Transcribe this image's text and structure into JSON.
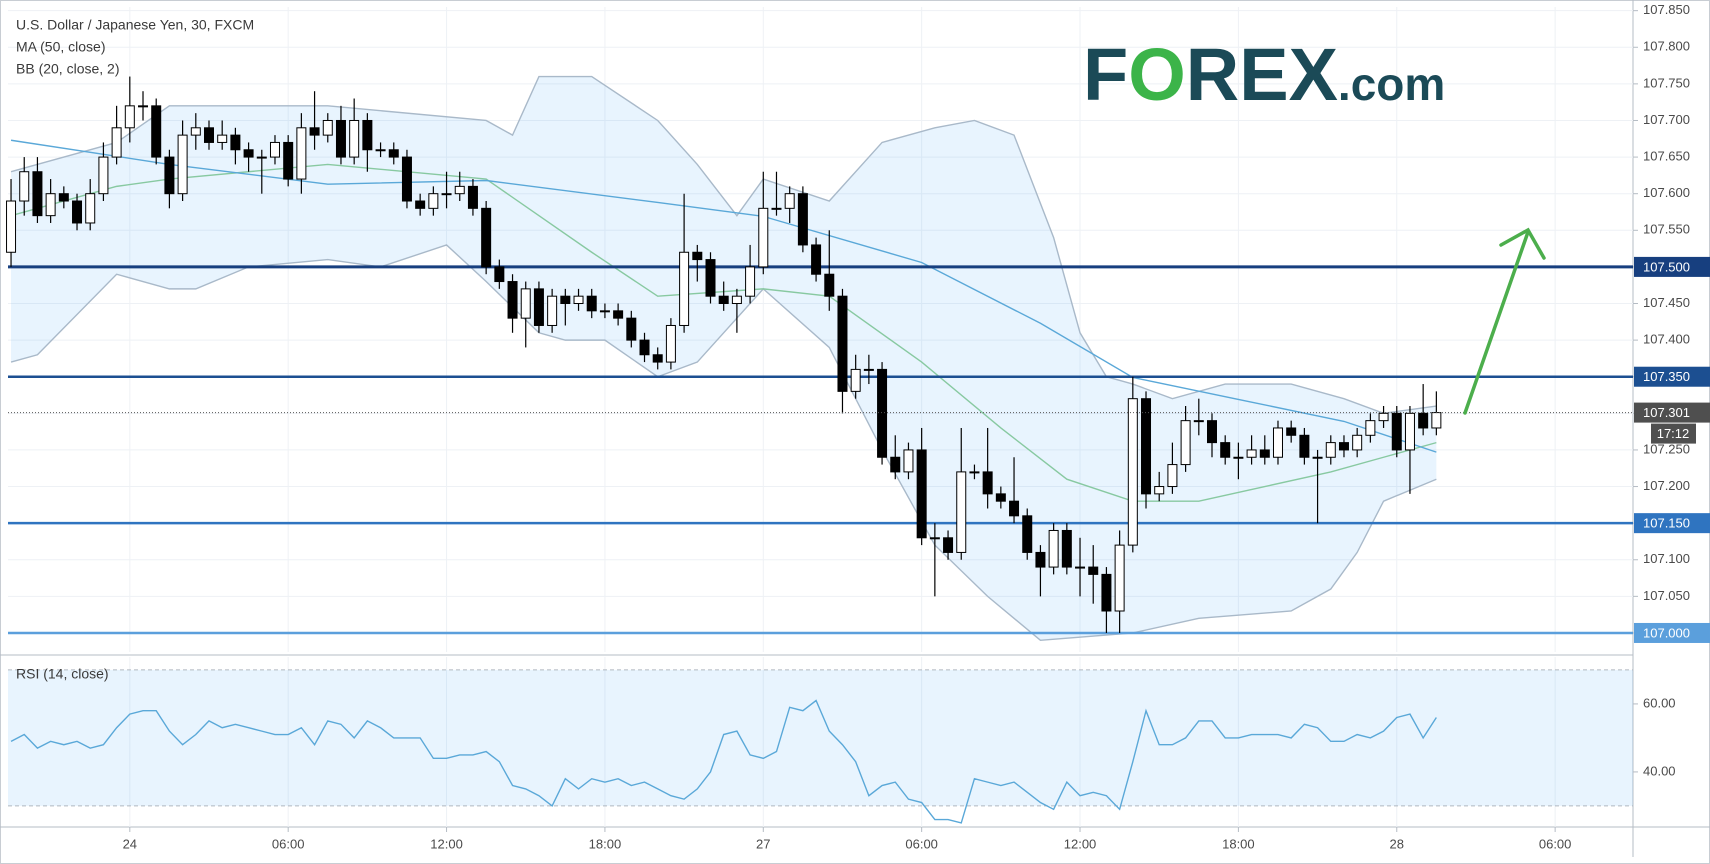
{
  "chart_data": {
    "type": "candlestick",
    "title": "U.S. Dollar / Japanese Yen, 30, FXCM",
    "indicator_labels": [
      "MA (50, close)",
      "BB (20, close, 2)"
    ],
    "logo": [
      "F",
      "O",
      "REX",
      ".com"
    ],
    "xlim": [
      -0.23,
      122.9
    ],
    "xticks": [
      {
        "value": 9,
        "label": "24"
      },
      {
        "value": 21,
        "label": "06:00"
      },
      {
        "value": 33,
        "label": "12:00"
      },
      {
        "value": 45,
        "label": "18:00"
      },
      {
        "value": 57,
        "label": "27"
      },
      {
        "value": 69,
        "label": "06:00"
      },
      {
        "value": 81,
        "label": "12:00"
      },
      {
        "value": 93,
        "label": "18:00"
      },
      {
        "value": 105,
        "label": "28"
      },
      {
        "value": 117,
        "label": "06:00"
      }
    ],
    "ylim": [
      106.974,
      107.855
    ],
    "yticks": [
      {
        "value": 107.85,
        "label": "107.850"
      },
      {
        "value": 107.8,
        "label": "107.800"
      },
      {
        "value": 107.75,
        "label": "107.750"
      },
      {
        "value": 107.7,
        "label": "107.700"
      },
      {
        "value": 107.65,
        "label": "107.650"
      },
      {
        "value": 107.6,
        "label": "107.600"
      },
      {
        "value": 107.55,
        "label": "107.550"
      },
      {
        "value": 107.5,
        "label": "107.500"
      },
      {
        "value": 107.45,
        "label": "107.450"
      },
      {
        "value": 107.4,
        "label": "107.400"
      },
      {
        "value": 107.35,
        "label": "107.350"
      },
      {
        "value": 107.3,
        "label": "107.300"
      },
      {
        "value": 107.25,
        "label": "107.250"
      },
      {
        "value": 107.2,
        "label": "107.200"
      },
      {
        "value": 107.15,
        "label": "107.150"
      },
      {
        "value": 107.1,
        "label": "107.100"
      },
      {
        "value": 107.05,
        "label": "107.050"
      },
      {
        "value": 107.0,
        "label": "107.000"
      }
    ],
    "grid": true,
    "open": [
      107.52,
      107.59,
      107.63,
      107.57,
      107.6,
      107.59,
      107.56,
      107.6,
      107.65,
      107.69,
      107.72,
      107.72,
      107.65,
      107.6,
      107.68,
      107.69,
      107.67,
      107.68,
      107.66,
      107.65,
      107.65,
      107.67,
      107.62,
      107.69,
      107.68,
      107.7,
      107.65,
      107.7,
      107.66,
      107.66,
      107.65,
      107.59,
      107.58,
      107.6,
      107.6,
      107.61,
      107.58,
      107.5,
      107.48,
      107.43,
      107.47,
      107.42,
      107.46,
      107.45,
      107.46,
      107.44,
      107.44,
      107.43,
      107.4,
      107.38,
      107.37,
      107.42,
      107.52,
      107.51,
      107.46,
      107.45,
      107.46,
      107.5,
      107.58,
      107.58,
      107.6,
      107.53,
      107.49,
      107.46,
      107.33,
      107.36,
      107.36,
      107.24,
      107.22,
      107.25,
      107.13,
      107.13,
      107.11,
      107.22,
      107.22,
      107.19,
      107.18,
      107.16,
      107.11,
      107.09,
      107.14,
      107.09,
      107.09,
      107.08,
      107.03,
      107.12,
      107.32,
      107.19,
      107.2,
      107.23,
      107.29,
      107.29,
      107.26,
      107.24,
      107.24,
      107.25,
      107.24,
      107.28,
      107.27,
      107.24,
      107.24,
      107.26,
      107.25,
      107.27,
      107.29,
      107.3,
      107.25,
      107.3,
      107.28
    ],
    "high": [
      107.62,
      107.65,
      107.65,
      107.62,
      107.61,
      107.6,
      107.62,
      107.67,
      107.72,
      107.76,
      107.74,
      107.73,
      107.66,
      107.7,
      107.71,
      107.7,
      107.7,
      107.69,
      107.67,
      107.66,
      107.68,
      107.68,
      107.71,
      107.74,
      107.71,
      107.72,
      107.73,
      107.71,
      107.67,
      107.67,
      107.66,
      107.6,
      107.61,
      107.63,
      107.63,
      107.62,
      107.59,
      107.51,
      107.49,
      107.48,
      107.48,
      107.47,
      107.47,
      107.47,
      107.47,
      107.45,
      107.45,
      107.44,
      107.41,
      107.39,
      107.43,
      107.6,
      107.53,
      107.52,
      107.48,
      107.47,
      107.53,
      107.63,
      107.63,
      107.61,
      107.61,
      107.54,
      107.55,
      107.47,
      107.38,
      107.38,
      107.37,
      107.27,
      107.26,
      107.28,
      107.15,
      107.14,
      107.28,
      107.23,
      107.28,
      107.2,
      107.24,
      107.17,
      107.12,
      107.15,
      107.15,
      107.13,
      107.12,
      107.09,
      107.14,
      107.35,
      107.33,
      107.22,
      107.26,
      107.31,
      107.32,
      107.3,
      107.27,
      107.26,
      107.27,
      107.27,
      107.29,
      107.29,
      107.28,
      107.25,
      107.27,
      107.27,
      107.28,
      107.3,
      107.31,
      107.31,
      107.31,
      107.34,
      107.33
    ],
    "low": [
      107.5,
      107.57,
      107.56,
      107.56,
      107.58,
      107.55,
      107.55,
      107.59,
      107.64,
      107.67,
      107.7,
      107.64,
      107.58,
      107.59,
      107.66,
      107.66,
      107.66,
      107.64,
      107.63,
      107.6,
      107.64,
      107.61,
      107.6,
      107.66,
      107.67,
      107.64,
      107.64,
      107.63,
      107.65,
      107.64,
      107.58,
      107.57,
      107.57,
      107.58,
      107.59,
      107.57,
      107.49,
      107.47,
      107.41,
      107.39,
      107.41,
      107.41,
      107.42,
      107.44,
      107.43,
      107.43,
      107.42,
      107.39,
      107.37,
      107.36,
      107.36,
      107.41,
      107.48,
      107.45,
      107.44,
      107.41,
      107.45,
      107.49,
      107.57,
      107.56,
      107.52,
      107.48,
      107.44,
      107.3,
      107.32,
      107.34,
      107.23,
      107.21,
      107.21,
      107.12,
      107.05,
      107.1,
      107.1,
      107.21,
      107.17,
      107.17,
      107.15,
      107.1,
      107.05,
      107.08,
      107.08,
      107.05,
      107.04,
      107.0,
      107.0,
      107.11,
      107.17,
      107.18,
      107.19,
      107.22,
      107.27,
      107.24,
      107.23,
      107.21,
      107.23,
      107.23,
      107.23,
      107.26,
      107.23,
      107.15,
      107.23,
      107.24,
      107.24,
      107.26,
      107.28,
      107.24,
      107.19,
      107.27,
      107.27
    ],
    "close": [
      107.59,
      107.63,
      107.57,
      107.6,
      107.59,
      107.56,
      107.6,
      107.65,
      107.69,
      107.72,
      107.72,
      107.65,
      107.6,
      107.68,
      107.69,
      107.67,
      107.68,
      107.66,
      107.65,
      107.65,
      107.67,
      107.62,
      107.69,
      107.68,
      107.7,
      107.65,
      107.7,
      107.66,
      107.66,
      107.65,
      107.59,
      107.58,
      107.6,
      107.6,
      107.61,
      107.58,
      107.5,
      107.48,
      107.43,
      107.47,
      107.42,
      107.46,
      107.45,
      107.46,
      107.44,
      107.44,
      107.43,
      107.4,
      107.38,
      107.37,
      107.42,
      107.52,
      107.51,
      107.46,
      107.45,
      107.46,
      107.5,
      107.58,
      107.58,
      107.6,
      107.53,
      107.49,
      107.46,
      107.33,
      107.36,
      107.36,
      107.24,
      107.22,
      107.25,
      107.13,
      107.13,
      107.11,
      107.22,
      107.22,
      107.19,
      107.18,
      107.16,
      107.11,
      107.09,
      107.14,
      107.09,
      107.09,
      107.08,
      107.03,
      107.12,
      107.32,
      107.19,
      107.2,
      107.23,
      107.29,
      107.29,
      107.26,
      107.24,
      107.24,
      107.25,
      107.24,
      107.28,
      107.27,
      107.24,
      107.24,
      107.26,
      107.25,
      107.27,
      107.29,
      107.3,
      107.25,
      107.3,
      107.28,
      107.301
    ],
    "series": [
      {
        "name": "BB upper",
        "color": "#a9b9c9",
        "x": [
          0,
          8,
          12,
          24,
          36,
          38,
          40,
          44,
          49,
          52,
          55,
          57,
          62,
          66,
          70,
          73,
          76,
          79,
          81,
          83,
          85,
          88,
          92,
          97,
          101,
          104,
          108
        ],
        "values": [
          107.63,
          107.67,
          107.72,
          107.72,
          107.7,
          107.68,
          107.76,
          107.76,
          107.7,
          107.64,
          107.57,
          107.62,
          107.59,
          107.67,
          107.69,
          107.7,
          107.68,
          107.54,
          107.41,
          107.35,
          107.34,
          107.32,
          107.34,
          107.34,
          107.32,
          107.3,
          107.31
        ]
      },
      {
        "name": "BB lower",
        "color": "#a9b9c9",
        "x": [
          0,
          2,
          8,
          12,
          14,
          18,
          24,
          28,
          33,
          36,
          40,
          42,
          45,
          49,
          52,
          57,
          62,
          66,
          70,
          74,
          78,
          85,
          90,
          97,
          100,
          102,
          104,
          108
        ],
        "values": [
          107.37,
          107.38,
          107.49,
          107.47,
          107.47,
          107.5,
          107.51,
          107.5,
          107.53,
          107.48,
          107.41,
          107.4,
          107.4,
          107.35,
          107.37,
          107.47,
          107.39,
          107.25,
          107.12,
          107.05,
          106.99,
          107.0,
          107.02,
          107.03,
          107.06,
          107.11,
          107.18,
          107.21
        ]
      },
      {
        "name": "BB basis",
        "color": "#88c9a1",
        "x": [
          0,
          8,
          12,
          24,
          36,
          44,
          49,
          57,
          62,
          69,
          75,
          80,
          85,
          90,
          95,
          100,
          104,
          108
        ],
        "values": [
          107.57,
          107.61,
          107.62,
          107.64,
          107.62,
          107.52,
          107.46,
          107.47,
          107.46,
          107.37,
          107.28,
          107.21,
          107.18,
          107.18,
          107.2,
          107.22,
          107.24,
          107.26
        ]
      },
      {
        "name": "MA 50",
        "color": "#5aa8d8",
        "x": [
          0,
          12,
          24,
          36,
          49,
          57,
          69,
          78,
          85,
          93,
          101,
          108
        ],
        "values": [
          107.673,
          107.64,
          107.613,
          107.618,
          107.588,
          107.569,
          107.506,
          107.423,
          107.349,
          107.319,
          107.289,
          107.247
        ]
      }
    ],
    "band_fill": "rgba(33,150,243,0.10)",
    "levels": [
      {
        "value": 107.5,
        "label": "107.500",
        "color": "#173f7f"
      },
      {
        "value": 107.35,
        "label": "107.350",
        "color": "#1c4f91"
      },
      {
        "value": 107.15,
        "label": "107.150",
        "color": "#2f74c0"
      },
      {
        "value": 107.0,
        "label": "107.000",
        "color": "#5b9fdc"
      }
    ],
    "last_price": {
      "value": 107.301,
      "label": "107.301"
    },
    "countdown": "17:12",
    "rsi": {
      "title": "RSI (14, close)",
      "color": "#5aa8d8",
      "ylim": [
        23.8,
        73.8
      ],
      "yticks": [
        {
          "value": 60,
          "label": "60.00"
        },
        {
          "value": 40,
          "label": "40.00"
        }
      ],
      "bands": [
        70,
        30
      ],
      "values": [
        49,
        51,
        47,
        49,
        48,
        49,
        47,
        48,
        53,
        57,
        58,
        58,
        52,
        48,
        51,
        55,
        53,
        54,
        53,
        52,
        51,
        51,
        53,
        48,
        55,
        54,
        50,
        55,
        53,
        50,
        50,
        50,
        44,
        44,
        45,
        45,
        46,
        43,
        36,
        35,
        33,
        30,
        38,
        35,
        38,
        37,
        38,
        36,
        37,
        35,
        33,
        32,
        35,
        40,
        51,
        52,
        45,
        44,
        46,
        59,
        58,
        61,
        52,
        48,
        43,
        33,
        36,
        37,
        32,
        31,
        26,
        26,
        25,
        38,
        37,
        36,
        37,
        34,
        31,
        29,
        37,
        33,
        34,
        33,
        29,
        43,
        58,
        48,
        48,
        50,
        55,
        55,
        50,
        50,
        51,
        51,
        51,
        50,
        54,
        53,
        49,
        49,
        51,
        50,
        52,
        56,
        57,
        50,
        56
      ]
    }
  }
}
